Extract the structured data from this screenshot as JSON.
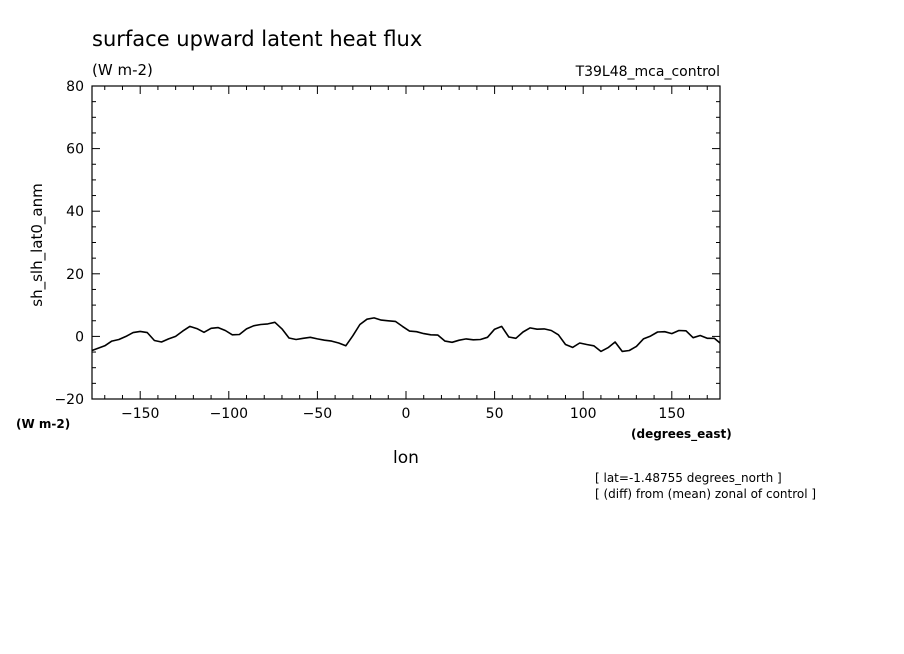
{
  "chart_data": {
    "type": "line",
    "title": "surface upward latent heat flux",
    "units_label": "(W m-2)",
    "run_label": "T39L48_mca_control",
    "ylabel": "sh_slh_lat0_anm",
    "y_units_label": "(W m-2)",
    "xlabel": "lon",
    "x_units_label": "(degrees_east)",
    "note_lat": "[ lat=-1.48755 degrees_north ]",
    "note_diff": "[ (diff) from (mean) zonal of control ]",
    "xlim": [
      -177.2,
      177.2
    ],
    "ylim": [
      -20,
      80
    ],
    "x_ticks": [
      -150,
      -100,
      -50,
      0,
      50,
      100,
      150
    ],
    "x_tick_labels": [
      "-150",
      "-100",
      "-50",
      "0",
      "50",
      "100",
      "150"
    ],
    "y_ticks": [
      -20,
      0,
      20,
      40,
      60,
      80
    ],
    "y_tick_labels": [
      "-20",
      "0",
      "20",
      "40",
      "60",
      "80"
    ],
    "grid": false,
    "color": "#000000",
    "series": [
      {
        "x": [
          -177.2,
          -170,
          -166,
          -162,
          -158,
          -154,
          -150,
          -146,
          -142,
          -138,
          -134,
          -130,
          -126,
          -122,
          -118,
          -114,
          -110,
          -106,
          -102,
          -98,
          -94,
          -90,
          -86,
          -82,
          -78,
          -74,
          -70,
          -66,
          -62,
          -58,
          -54,
          -50,
          -46,
          -42,
          -38,
          -34,
          -30,
          -26,
          -22,
          -18,
          -14,
          -10,
          -6,
          -2,
          2,
          6,
          10,
          14,
          18,
          22,
          26,
          30,
          34,
          38,
          42,
          46,
          50,
          54,
          58,
          62,
          66,
          70,
          74,
          78,
          82,
          86,
          90,
          94,
          98,
          102,
          106,
          110,
          114,
          118,
          122,
          126,
          130,
          134,
          138,
          142,
          146,
          150,
          154,
          158,
          162,
          166,
          170,
          174,
          177.2
        ],
        "values": [
          -4.5,
          -3,
          -1.5,
          -1,
          0,
          1.2,
          1.6,
          1.2,
          -1.3,
          -1.8,
          -0.8,
          0,
          1.7,
          3.2,
          2.5,
          1.3,
          2.6,
          2.8,
          1.9,
          0.5,
          0.6,
          2.4,
          3.4,
          3.8,
          4,
          4.5,
          2.4,
          -0.5,
          -1,
          -0.6,
          -0.3,
          -0.8,
          -1.2,
          -1.5,
          -2.1,
          -3,
          0.2,
          3.8,
          5.5,
          5.9,
          5.2,
          5,
          4.8,
          3.2,
          1.7,
          1.5,
          0.9,
          0.5,
          0.4,
          -1.5,
          -1.9,
          -1.2,
          -0.8,
          -1.1,
          -1,
          -0.3,
          2.3,
          3.2,
          -0.2,
          -0.6,
          1.4,
          2.7,
          2.3,
          2.4,
          1.9,
          0.5,
          -2.6,
          -3.5,
          -2.1,
          -2.6,
          -3,
          -4.8,
          -3.6,
          -1.8,
          -4.8,
          -4.5,
          -3.2,
          -0.8,
          0.1,
          1.4,
          1.5,
          0.9,
          1.9,
          1.8,
          -0.4,
          0.3,
          -0.6,
          -0.6,
          -2.1
        ]
      }
    ]
  }
}
